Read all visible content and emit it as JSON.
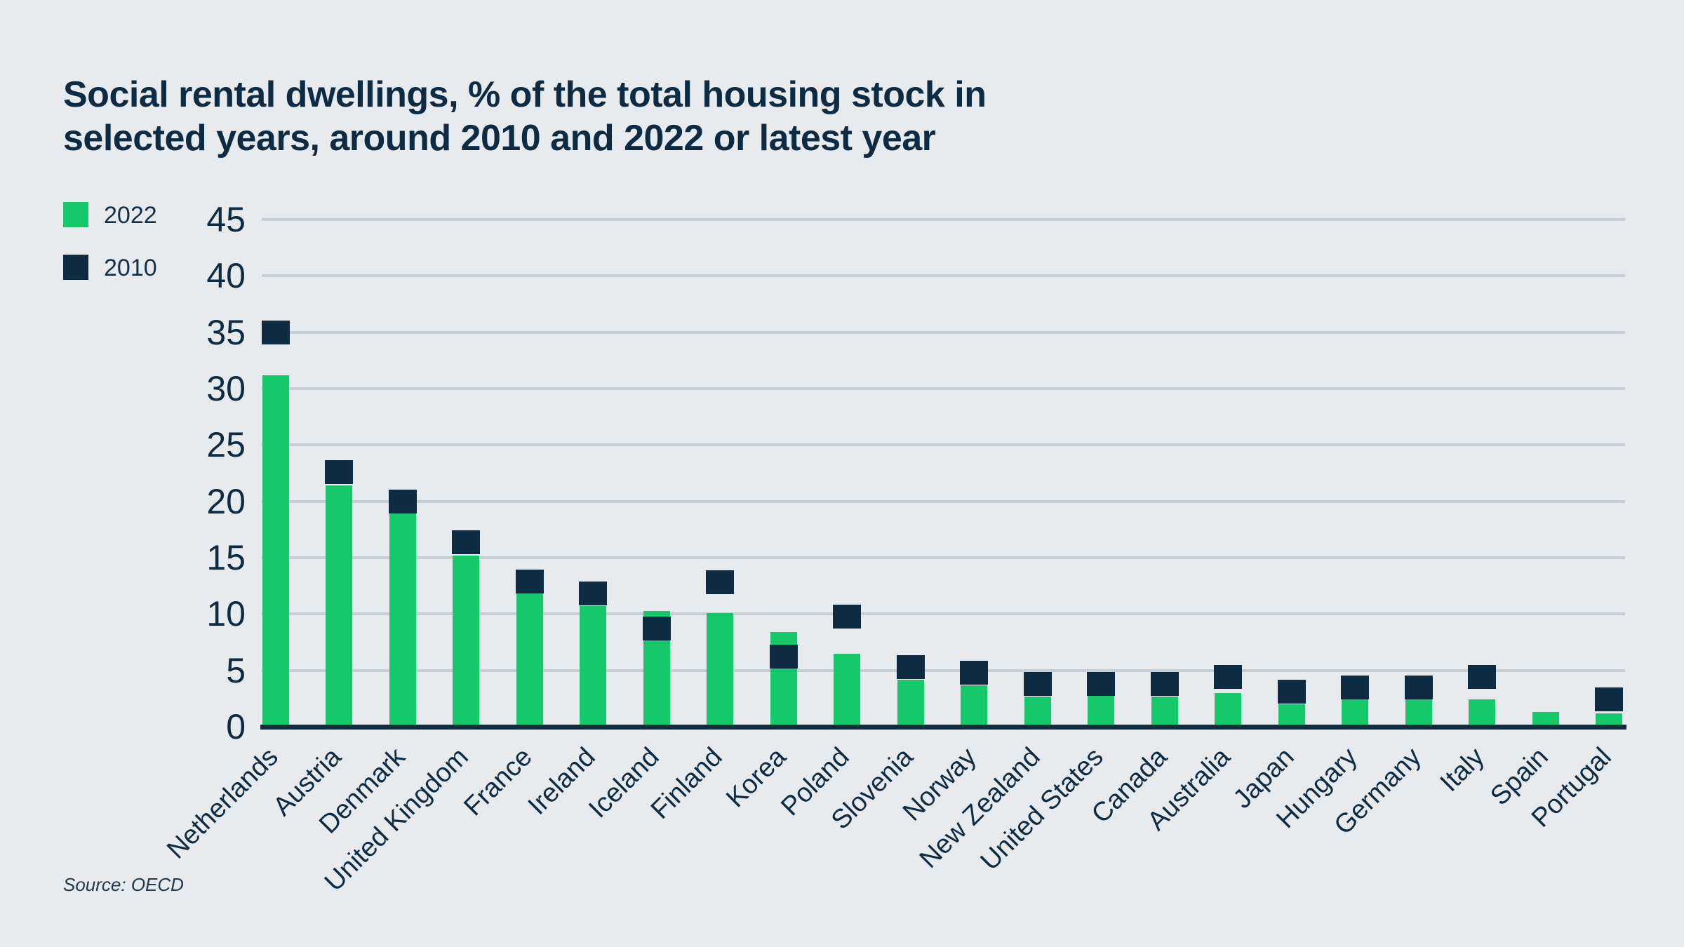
{
  "header": {
    "title_lines": [
      "Social rental dwellings, % of the total housing stock in",
      "selected years, around 2010 and 2022 or latest year"
    ]
  },
  "legend": [
    {
      "label": "2022",
      "color": "#15C96B"
    },
    {
      "label": "2010",
      "color": "#0D2B42"
    }
  ],
  "source": "Source: OECD",
  "colors": {
    "background": "#E7EBEE",
    "navy": "#0E2B44",
    "green": "#15C96B",
    "gridline": "#C6CDD4"
  },
  "chart_data": {
    "type": "bar",
    "title": "Social rental dwellings, % of the total housing stock in selected years, around 2010 and 2022 or latest year",
    "categories": [
      "Netherlands",
      "Austria",
      "Denmark",
      "United Kingdom",
      "France",
      "Ireland",
      "Iceland",
      "Finland",
      "Korea",
      "Poland",
      "Slovenia",
      "Norway",
      "New Zealand",
      "United States",
      "Canada",
      "Australia",
      "Japan",
      "Hungary",
      "Germany",
      "Italy",
      "Spain",
      "Portugal"
    ],
    "series": [
      {
        "name": "2022",
        "style": "bar",
        "color": "#15C96B",
        "values": [
          31.2,
          21.4,
          18.9,
          15.2,
          11.8,
          10.7,
          10.3,
          10.1,
          8.4,
          6.5,
          4.2,
          3.7,
          2.7,
          3.6,
          2.7,
          3.0,
          2.0,
          2.4,
          2.5,
          2.4,
          1.3,
          1.2
        ]
      },
      {
        "name": "2010",
        "style": "square-marker",
        "color": "#0D2B42",
        "values": [
          35.0,
          22.6,
          20.0,
          16.4,
          12.9,
          11.8,
          8.7,
          12.8,
          6.2,
          9.8,
          5.3,
          4.8,
          3.8,
          3.8,
          3.8,
          4.4,
          3.1,
          3.5,
          3.5,
          4.4,
          null,
          2.4
        ]
      }
    ],
    "ylim": [
      0,
      45
    ],
    "yticks": [
      0,
      5,
      10,
      15,
      20,
      25,
      30,
      35,
      40,
      45
    ],
    "xlabel": "",
    "ylabel": "",
    "grid": true,
    "legend_position": "top-left",
    "source": "Source: OECD"
  }
}
